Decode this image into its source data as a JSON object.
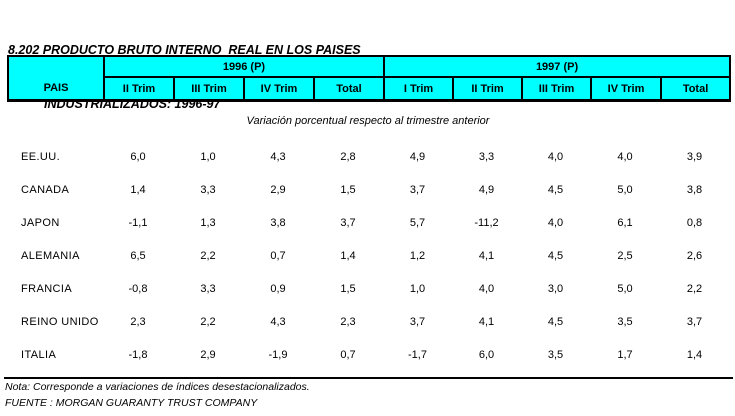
{
  "title": {
    "line1": "8.202 PRODUCTO BRUTO INTERNO  REAL EN LOS PAISES",
    "line2": "INDUSTRIALIZADOS: 1996-97"
  },
  "colors": {
    "header_bg": "#00FFFF",
    "border": "#000000",
    "text": "#000000",
    "page_bg": "#FFFFFF"
  },
  "table": {
    "country_header": "PAIS",
    "groups": [
      {
        "label": "1996 (P)",
        "sub": [
          "II Trim",
          "III Trim",
          "IV Trim",
          "Total"
        ]
      },
      {
        "label": "1997 (P)",
        "sub": [
          "I Trim",
          "II Trim",
          "III Trim",
          "IV Trim",
          "Total"
        ]
      }
    ],
    "subtitle": "Variación porcentual respecto al trimestre anterior",
    "rows": [
      {
        "country": "EE.UU.",
        "values": [
          "6,0",
          "1,0",
          "4,3",
          "2,8",
          "4,9",
          "3,3",
          "4,0",
          "4,0",
          "3,9"
        ]
      },
      {
        "country": "CANADA",
        "values": [
          "1,4",
          "3,3",
          "2,9",
          "1,5",
          "3,7",
          "4,9",
          "4,5",
          "5,0",
          "3,8"
        ]
      },
      {
        "country": "JAPON",
        "values": [
          "-1,1",
          "1,3",
          "3,8",
          "3,7",
          "5,7",
          "-11,2",
          "4,0",
          "6,1",
          "0,8"
        ]
      },
      {
        "country": "ALEMANIA",
        "values": [
          "6,5",
          "2,2",
          "0,7",
          "1,4",
          "1,2",
          "4,1",
          "4,5",
          "2,5",
          "2,6"
        ]
      },
      {
        "country": "FRANCIA",
        "values": [
          "-0,8",
          "3,3",
          "0,9",
          "1,5",
          "1,0",
          "4,0",
          "3,0",
          "5,0",
          "2,2"
        ]
      },
      {
        "country": "REINO UNIDO",
        "values": [
          "2,3",
          "2,2",
          "4,3",
          "2,3",
          "3,7",
          "4,1",
          "4,5",
          "3,5",
          "3,7"
        ]
      },
      {
        "country": "ITALIA",
        "values": [
          "-1,8",
          "2,9",
          "-1,9",
          "0,7",
          "-1,7",
          "6,0",
          "3,5",
          "1,7",
          "1,4"
        ]
      }
    ]
  },
  "footer": {
    "note": "Nota: Corresponde a variaciones de índices desestacionalizados.",
    "source": "FUENTE : MORGAN GUARANTY TRUST COMPANY"
  },
  "chart_data": {
    "type": "table",
    "title": "8.202 PRODUCTO BRUTO INTERNO REAL EN LOS PAISES INDUSTRIALIZADOS: 1996-97",
    "subtitle": "Variación porcentual respecto al trimestre anterior",
    "columns": [
      "PAIS",
      "1996 II Trim",
      "1996 III Trim",
      "1996 IV Trim",
      "1996 Total",
      "1997 I Trim",
      "1997 II Trim",
      "1997 III Trim",
      "1997 IV Trim",
      "1997 Total"
    ],
    "rows": [
      [
        "EE.UU.",
        6.0,
        1.0,
        4.3,
        2.8,
        4.9,
        3.3,
        4.0,
        4.0,
        3.9
      ],
      [
        "CANADA",
        1.4,
        3.3,
        2.9,
        1.5,
        3.7,
        4.9,
        4.5,
        5.0,
        3.8
      ],
      [
        "JAPON",
        -1.1,
        1.3,
        3.8,
        3.7,
        5.7,
        -11.2,
        4.0,
        6.1,
        0.8
      ],
      [
        "ALEMANIA",
        6.5,
        2.2,
        0.7,
        1.4,
        1.2,
        4.1,
        4.5,
        2.5,
        2.6
      ],
      [
        "FRANCIA",
        -0.8,
        3.3,
        0.9,
        1.5,
        1.0,
        4.0,
        3.0,
        5.0,
        2.2
      ],
      [
        "REINO UNIDO",
        2.3,
        2.2,
        4.3,
        2.3,
        3.7,
        4.1,
        4.5,
        3.5,
        3.7
      ],
      [
        "ITALIA",
        -1.8,
        2.9,
        -1.9,
        0.7,
        -1.7,
        6.0,
        3.5,
        1.7,
        1.4
      ]
    ]
  }
}
